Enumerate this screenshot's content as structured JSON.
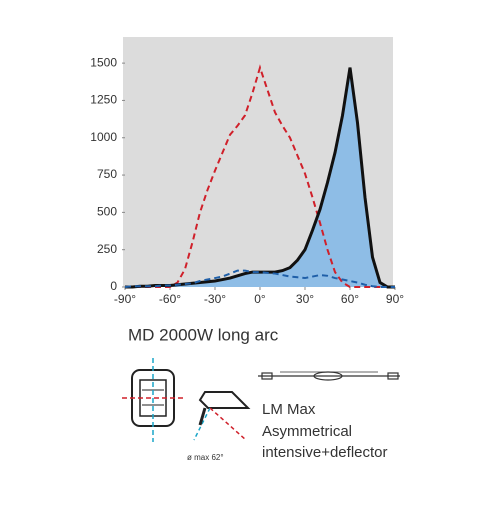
{
  "chart_data": {
    "type": "line",
    "x": [
      -90,
      -85,
      -80,
      -75,
      -70,
      -65,
      -60,
      -55,
      -50,
      -45,
      -40,
      -35,
      -30,
      -25,
      -20,
      -15,
      -10,
      -5,
      0,
      5,
      10,
      15,
      20,
      25,
      30,
      35,
      40,
      45,
      50,
      55,
      60,
      65,
      70,
      75,
      80,
      85,
      90
    ],
    "series": [
      {
        "color": "#d0202a",
        "dash": true,
        "values": [
          0,
          0,
          0,
          0,
          0,
          0,
          0,
          30,
          120,
          300,
          500,
          650,
          780,
          900,
          1020,
          1080,
          1150,
          1300,
          1470,
          1320,
          1170,
          1080,
          1000,
          880,
          760,
          600,
          430,
          250,
          100,
          30,
          0,
          0,
          0,
          0,
          0,
          0,
          0
        ]
      },
      {
        "color": "#111111",
        "dash": false,
        "fill": "#8ebde6",
        "values": [
          0,
          0,
          5,
          5,
          10,
          10,
          10,
          15,
          20,
          25,
          30,
          35,
          40,
          50,
          60,
          75,
          90,
          100,
          100,
          100,
          100,
          110,
          130,
          180,
          250,
          380,
          520,
          700,
          900,
          1150,
          1470,
          1100,
          600,
          200,
          30,
          0,
          0
        ]
      },
      {
        "color": "#1f5fa8",
        "dash": true,
        "values": [
          0,
          5,
          5,
          5,
          5,
          10,
          10,
          15,
          20,
          25,
          40,
          50,
          60,
          70,
          90,
          110,
          110,
          100,
          100,
          95,
          90,
          80,
          70,
          65,
          60,
          70,
          80,
          75,
          60,
          50,
          40,
          30,
          15,
          5,
          0,
          0,
          0
        ]
      }
    ],
    "xlim": [
      -90,
      90
    ],
    "ylim": [
      0,
      1675
    ],
    "xticks": [
      {
        "value": -90,
        "label": "-90°"
      },
      {
        "value": -60,
        "label": "-60°"
      },
      {
        "value": -30,
        "label": "-30°"
      },
      {
        "value": 0,
        "label": "0°"
      },
      {
        "value": 30,
        "label": "30°"
      },
      {
        "value": 60,
        "label": "60°"
      },
      {
        "value": 90,
        "label": "90°"
      }
    ],
    "yticks": [
      0,
      250,
      500,
      750,
      1000,
      1250,
      1500
    ]
  },
  "caption": {
    "title": "MD 2000W  long arc",
    "lines": [
      "LM Max",
      "Asymmetrical",
      "intensive+deflector"
    ],
    "angle_note": "ø max 62°"
  }
}
